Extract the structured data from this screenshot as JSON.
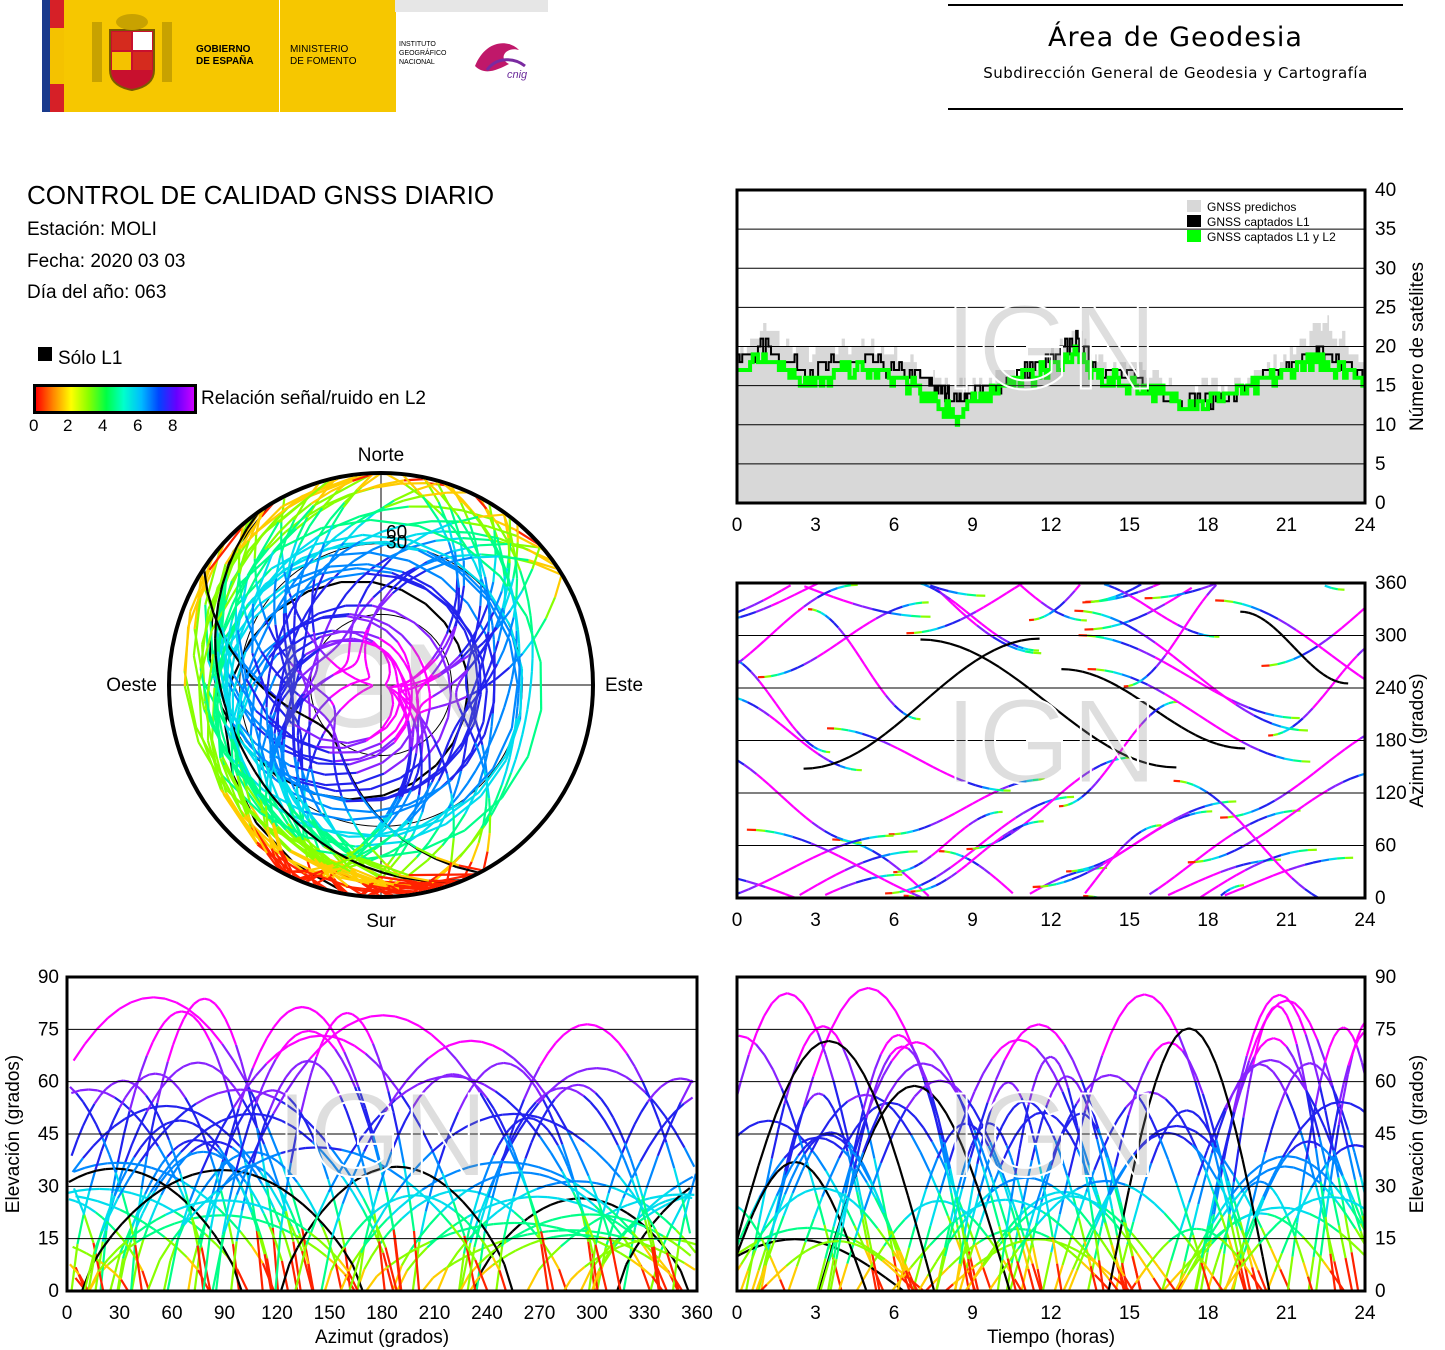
{
  "header": {
    "gov_line1": "GOBIERNO",
    "gov_line2": "DE ESPAÑA",
    "min_line1": "MINISTERIO",
    "min_line2": "DE FOMENTO",
    "ign_line1": "INSTITUTO",
    "ign_line2": "GEOGRÁFICO",
    "ign_line3": "NACIONAL",
    "cnig": "cnig",
    "area_title": "Área de Geodesia",
    "area_subtitle": "Subdirección General de Geodesia y Cartografía"
  },
  "info": {
    "title": "CONTROL DE CALIDAD GNSS DIARIO",
    "station": "Estación: MOLI",
    "date": "Fecha: 2020 03 03",
    "doy": "Día del año: 063"
  },
  "legend": {
    "only_l1": "Sólo L1",
    "snr_label": "Relación señal/ruido en L2",
    "snr_ticks": [
      "0",
      "2",
      "4",
      "6",
      "8"
    ]
  },
  "watermark": "IGN",
  "colors": {
    "predicted": "#d8d8d8",
    "l1": "#000000",
    "l1l2": "#00ff00",
    "high_snr": "#ff00ff"
  },
  "chart_data": [
    {
      "type": "area",
      "ylabel": "Número de satélites",
      "xlim": [
        0,
        24
      ],
      "ylim": [
        0,
        40
      ],
      "xticks": [
        "0",
        "3",
        "6",
        "9",
        "12",
        "15",
        "18",
        "21",
        "24"
      ],
      "yticks": [
        "0",
        "5",
        "10",
        "15",
        "20",
        "25",
        "30",
        "35",
        "40"
      ],
      "grid": true,
      "legend_position": "top-right",
      "x": [
        0,
        1,
        2,
        3,
        4,
        5,
        6,
        7,
        7.5,
        8,
        8.5,
        9,
        10,
        11,
        12,
        12.9,
        13.5,
        14,
        15,
        16,
        17,
        18,
        19,
        20,
        21,
        22,
        22.5,
        23,
        24
      ],
      "series": [
        {
          "name": "GNSS predichos",
          "values": [
            19,
            22,
            20,
            19,
            20,
            20,
            19,
            17,
            16,
            15,
            15,
            15,
            16,
            17,
            19,
            22,
            19,
            18,
            17,
            16,
            15,
            15,
            15,
            17,
            19,
            22,
            23,
            21,
            18
          ]
        },
        {
          "name": "GNSS captados L1",
          "values": [
            18,
            20,
            18,
            17,
            18,
            18,
            17,
            16,
            15,
            14,
            13,
            14,
            15,
            17,
            18,
            21,
            18,
            17,
            16,
            14,
            13,
            13,
            14,
            16,
            17,
            19,
            19,
            18,
            16
          ]
        },
        {
          "name": "GNSS captados L1 y L2",
          "values": [
            17,
            19,
            17,
            15,
            17,
            17,
            16,
            14,
            13,
            12,
            11,
            13,
            15,
            16,
            17,
            19,
            17,
            16,
            15,
            14,
            13,
            13,
            14,
            15,
            17,
            18,
            18,
            17,
            16
          ]
        }
      ]
    },
    {
      "type": "scatter",
      "ylabel": "Azimut (grados)",
      "xlim": [
        0,
        24
      ],
      "ylim": [
        0,
        360
      ],
      "xticks": [
        "0",
        "3",
        "6",
        "9",
        "12",
        "15",
        "18",
        "21",
        "24"
      ],
      "yticks": [
        "0",
        "60",
        "120",
        "180",
        "240",
        "300",
        "360"
      ],
      "grid": true
    },
    {
      "type": "scatter",
      "title": "",
      "labels": {
        "north": "Norte",
        "south": "Sur",
        "east": "Este",
        "west": "Oeste"
      },
      "rings": [
        "30",
        "60"
      ]
    },
    {
      "type": "scatter",
      "xlabel": "Azimut (grados)",
      "ylabel": "Elevación (grados)",
      "xlim": [
        0,
        360
      ],
      "ylim": [
        0,
        90
      ],
      "xticks": [
        "0",
        "30",
        "60",
        "90",
        "120",
        "150",
        "180",
        "210",
        "240",
        "270",
        "300",
        "330",
        "360"
      ],
      "yticks": [
        "0",
        "15",
        "30",
        "45",
        "60",
        "75",
        "90"
      ],
      "grid": true
    },
    {
      "type": "scatter",
      "xlabel": "Tiempo (horas)",
      "ylabel": "Elevación (grados)",
      "xlim": [
        0,
        24
      ],
      "ylim": [
        0,
        90
      ],
      "xticks": [
        "0",
        "3",
        "6",
        "9",
        "12",
        "15",
        "18",
        "21",
        "24"
      ],
      "yticks": [
        "0",
        "15",
        "30",
        "45",
        "60",
        "75",
        "90"
      ],
      "grid": true
    }
  ]
}
